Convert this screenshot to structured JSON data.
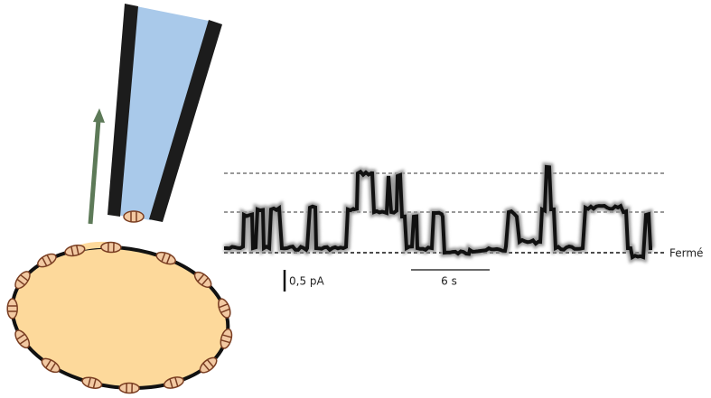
{
  "labels": {
    "current_scale": "0,5 pA",
    "time_scale": "6 s",
    "closed_level": "Fermé"
  }
}
